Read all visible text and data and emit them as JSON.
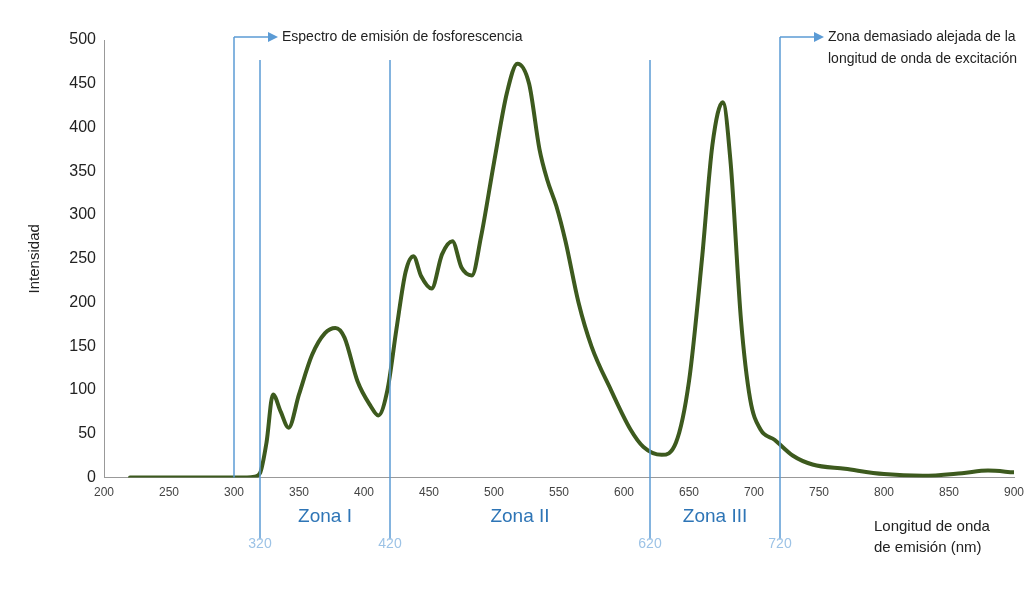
{
  "chart_data": {
    "type": "line",
    "ylabel": "Intensidad",
    "xlabel": "Longitud de onda de emisión (nm)",
    "xlim": [
      200,
      900
    ],
    "xticks": [
      200,
      250,
      300,
      350,
      400,
      450,
      500,
      550,
      600,
      650,
      700,
      750,
      800,
      850,
      900
    ],
    "ylim": [
      0,
      500
    ],
    "yticks": [
      0,
      50,
      100,
      150,
      200,
      250,
      300,
      350,
      400,
      450,
      500
    ],
    "grid": false,
    "legend": false,
    "marker": "none",
    "line_style": "solid",
    "series": [
      {
        "color": "#3d5a1e",
        "x": [
          220,
          250,
          280,
          300,
          310,
          316,
          320,
          325,
          330,
          336,
          342,
          350,
          360,
          370,
          378,
          385,
          395,
          405,
          411,
          418,
          425,
          432,
          438,
          444,
          452,
          460,
          468,
          475,
          483,
          490,
          500,
          510,
          518,
          527,
          535,
          541,
          548,
          555,
          565,
          575,
          590,
          605,
          615,
          629,
          640,
          650,
          660,
          668,
          676,
          682,
          690,
          697,
          705,
          716,
          730,
          745,
          770,
          800,
          830,
          860,
          880,
          900
        ],
        "values": [
          0,
          0,
          0,
          0,
          0,
          1,
          5,
          40,
          95,
          75,
          57,
          95,
          140,
          165,
          171,
          160,
          110,
          82,
          71,
          100,
          170,
          235,
          253,
          230,
          216,
          255,
          270,
          240,
          231,
          275,
          360,
          440,
          473,
          450,
          375,
          340,
          310,
          270,
          200,
          150,
          100,
          55,
          35,
          26,
          40,
          110,
          250,
          380,
          429,
          360,
          180,
          90,
          55,
          43,
          25,
          15,
          10,
          4,
          2,
          5,
          8,
          6
        ]
      }
    ],
    "ref_lines": [
      {
        "axis": "x",
        "value": 300,
        "color": "#5b9bd5"
      },
      {
        "axis": "x",
        "value": 320,
        "label": "320",
        "color": "#5b9bd5"
      },
      {
        "axis": "x",
        "value": 420,
        "label": "420",
        "color": "#5b9bd5"
      },
      {
        "axis": "x",
        "value": 620,
        "label": "620",
        "color": "#5b9bd5"
      },
      {
        "axis": "x",
        "value": 720,
        "label": "720",
        "color": "#5b9bd5"
      }
    ],
    "annotations": [
      "Espectro de emisión de fosforescencia",
      "Zona I",
      "Zona II",
      "Zona III",
      "Zona demasiado alejada de la longitud de onda de excitación"
    ]
  }
}
